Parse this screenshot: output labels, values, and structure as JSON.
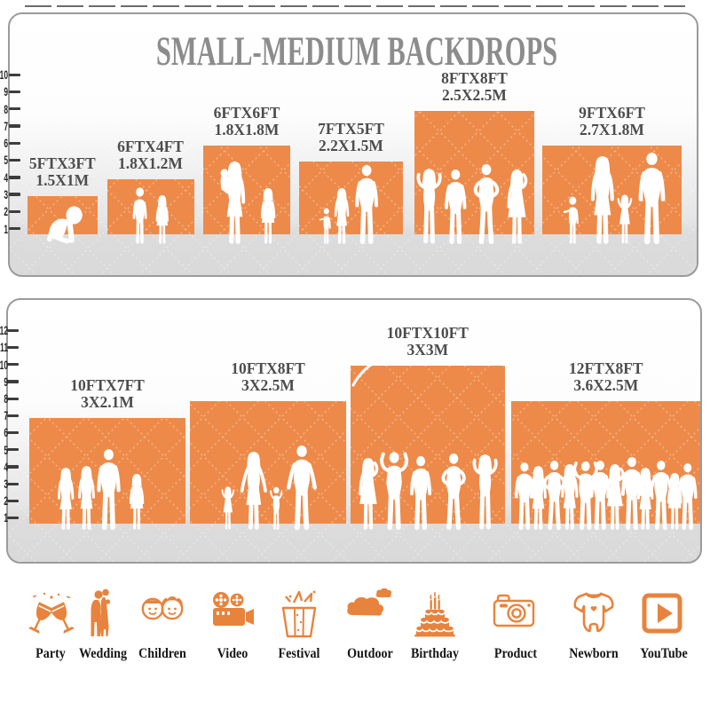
{
  "title": "SMALL-MEDIUM BACKDROPS",
  "colors": {
    "backdrop_orange": "#ED8A49",
    "icon_orange": "#E8833D",
    "panel_border_gray": "#9b9b9b",
    "title_gray": "#8c8c8c",
    "label_gray": "#4d4d4d"
  },
  "panels": [
    {
      "name": "small-medium-backdrops",
      "title": "SMALL-MEDIUM BACKDROPS",
      "ruler_ft": [
        "10",
        "9",
        "8",
        "7",
        "6",
        "5",
        "4",
        "3",
        "2",
        "1"
      ],
      "blocks": [
        {
          "size_ft": "5FTX3FT",
          "size_m": "1.5X1M",
          "width_ft": 5,
          "height_ft": 3
        },
        {
          "size_ft": "6FTX4FT",
          "size_m": "1.8X1.2M",
          "width_ft": 6,
          "height_ft": 4
        },
        {
          "size_ft": "6FTX6FT",
          "size_m": "1.8X1.8M",
          "width_ft": 6,
          "height_ft": 6
        },
        {
          "size_ft": "7FTX5FT",
          "size_m": "2.2X1.5M",
          "width_ft": 7,
          "height_ft": 5
        },
        {
          "size_ft": "8FTX8FT",
          "size_m": "2.5X2.5M",
          "width_ft": 8,
          "height_ft": 8
        },
        {
          "size_ft": "9FTX6FT",
          "size_m": "2.7X1.8M",
          "width_ft": 9,
          "height_ft": 6
        }
      ]
    },
    {
      "name": "large-backdrops",
      "title": "",
      "ruler_ft": [
        "12",
        "11",
        "10",
        "9",
        "8",
        "7",
        "6",
        "5",
        "4",
        "3",
        "2",
        "1"
      ],
      "blocks": [
        {
          "size_ft": "10FTX7FT",
          "size_m": "3X2.1M",
          "width_ft": 10,
          "height_ft": 7
        },
        {
          "size_ft": "10FTX8FT",
          "size_m": "3X2.5M",
          "width_ft": 10,
          "height_ft": 8
        },
        {
          "size_ft": "10FTX10FT",
          "size_m": "3X3M",
          "width_ft": 10,
          "height_ft": 10
        },
        {
          "size_ft": "12FTX8FT",
          "size_m": "3.6X2.5M",
          "width_ft": 12,
          "height_ft": 8
        }
      ]
    }
  ],
  "categories": [
    {
      "label": "Party",
      "icon": "party-icon"
    },
    {
      "label": "Wedding",
      "icon": "wedding-icon"
    },
    {
      "label": "Children",
      "icon": "children-icon"
    },
    {
      "label": "Video",
      "icon": "video-icon"
    },
    {
      "label": "Festival",
      "icon": "festival-icon"
    },
    {
      "label": "Outdoor",
      "icon": "outdoor-icon"
    },
    {
      "label": "Birthday",
      "icon": "birthday-icon"
    },
    {
      "label": "Product",
      "icon": "product-icon"
    },
    {
      "label": "Newborn",
      "icon": "newborn-icon"
    },
    {
      "label": "YouTube",
      "icon": "youtube-icon"
    }
  ]
}
